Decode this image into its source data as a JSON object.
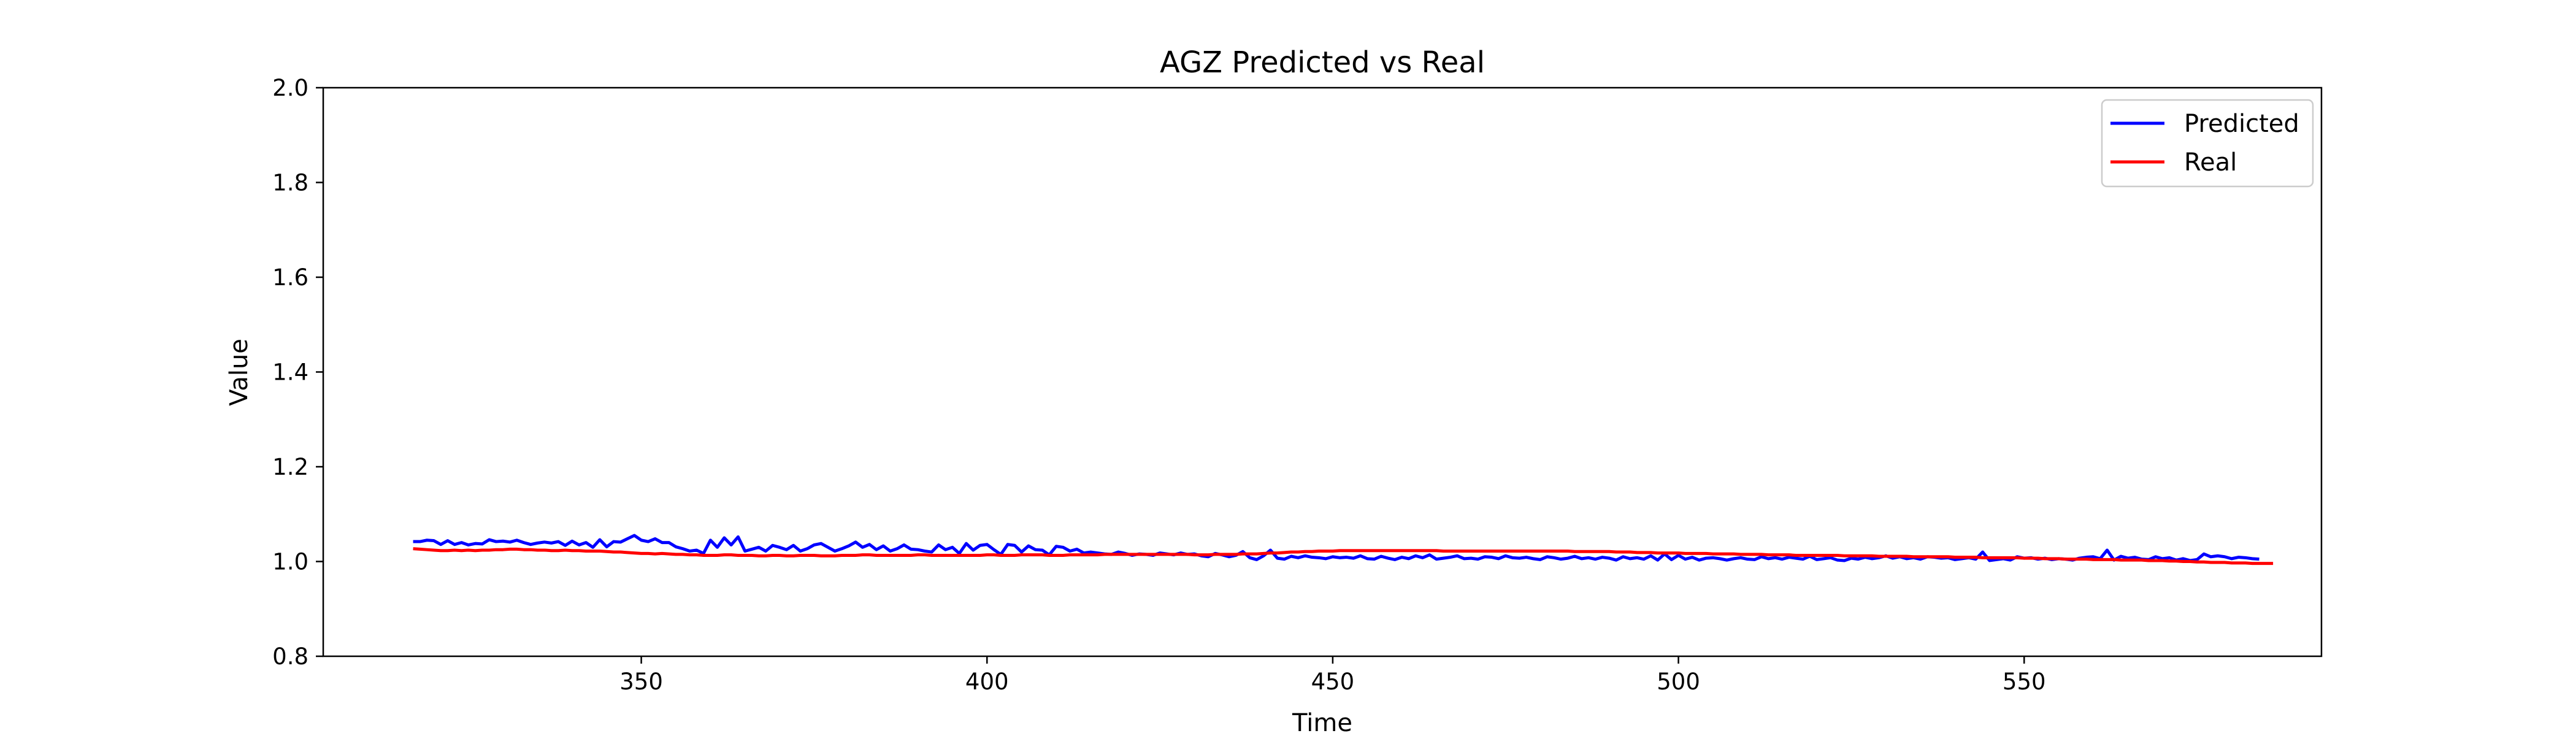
{
  "chart_data": {
    "type": "line",
    "title": "AGZ Predicted vs Real",
    "xlabel": "Time",
    "ylabel": "Value",
    "xlim": [
      304,
      593
    ],
    "ylim": [
      0.8,
      2.0
    ],
    "xticks": [
      350,
      400,
      450,
      500,
      550
    ],
    "yticks": [
      0.8,
      1.0,
      1.2,
      1.4,
      1.6,
      1.8,
      2.0
    ],
    "xtick_labels": [
      "350",
      "400",
      "450",
      "500",
      "550"
    ],
    "ytick_labels": [
      "0.8",
      "1.0",
      "1.2",
      "1.4",
      "1.6",
      "1.8",
      "2.0"
    ],
    "grid": false,
    "legend_position": "top-right",
    "x_start": 317,
    "x_step": 1,
    "series": [
      {
        "name": "Predicted",
        "color": "#0000ff",
        "values": [
          1.042,
          1.042,
          1.045,
          1.044,
          1.036,
          1.044,
          1.036,
          1.04,
          1.035,
          1.038,
          1.037,
          1.046,
          1.042,
          1.043,
          1.041,
          1.045,
          1.04,
          1.036,
          1.039,
          1.041,
          1.039,
          1.042,
          1.034,
          1.043,
          1.035,
          1.04,
          1.03,
          1.046,
          1.031,
          1.042,
          1.041,
          1.048,
          1.055,
          1.045,
          1.042,
          1.048,
          1.04,
          1.04,
          1.031,
          1.027,
          1.022,
          1.024,
          1.017,
          1.045,
          1.03,
          1.05,
          1.035,
          1.052,
          1.022,
          1.026,
          1.03,
          1.022,
          1.034,
          1.03,
          1.025,
          1.034,
          1.022,
          1.027,
          1.035,
          1.038,
          1.03,
          1.022,
          1.027,
          1.033,
          1.041,
          1.03,
          1.036,
          1.025,
          1.033,
          1.022,
          1.027,
          1.035,
          1.026,
          1.025,
          1.022,
          1.02,
          1.035,
          1.025,
          1.03,
          1.017,
          1.038,
          1.024,
          1.034,
          1.036,
          1.025,
          1.015,
          1.036,
          1.034,
          1.02,
          1.033,
          1.025,
          1.024,
          1.014,
          1.032,
          1.03,
          1.022,
          1.026,
          1.018,
          1.02,
          1.018,
          1.016,
          1.015,
          1.02,
          1.017,
          1.013,
          1.016,
          1.015,
          1.013,
          1.018,
          1.016,
          1.014,
          1.018,
          1.015,
          1.016,
          1.012,
          1.01,
          1.017,
          1.014,
          1.01,
          1.013,
          1.021,
          1.008,
          1.004,
          1.012,
          1.024,
          1.007,
          1.005,
          1.011,
          1.008,
          1.012,
          1.009,
          1.008,
          1.006,
          1.01,
          1.008,
          1.009,
          1.007,
          1.012,
          1.006,
          1.005,
          1.011,
          1.007,
          1.004,
          1.009,
          1.006,
          1.012,
          1.008,
          1.014,
          1.005,
          1.007,
          1.009,
          1.012,
          1.006,
          1.007,
          1.005,
          1.01,
          1.009,
          1.006,
          1.012,
          1.008,
          1.007,
          1.009,
          1.006,
          1.004,
          1.01,
          1.008,
          1.005,
          1.007,
          1.011,
          1.006,
          1.008,
          1.005,
          1.009,
          1.007,
          1.003,
          1.01,
          1.006,
          1.008,
          1.005,
          1.012,
          1.003,
          1.016,
          1.004,
          1.013,
          1.005,
          1.009,
          1.003,
          1.007,
          1.008,
          1.006,
          1.003,
          1.006,
          1.008,
          1.005,
          1.004,
          1.01,
          1.006,
          1.008,
          1.005,
          1.009,
          1.007,
          1.005,
          1.011,
          1.004,
          1.006,
          1.008,
          1.003,
          1.002,
          1.007,
          1.005,
          1.009,
          1.006,
          1.008,
          1.012,
          1.007,
          1.01,
          1.006,
          1.008,
          1.005,
          1.01,
          1.009,
          1.007,
          1.008,
          1.004,
          1.006,
          1.008,
          1.005,
          1.02,
          1.002,
          1.004,
          1.006,
          1.003,
          1.01,
          1.007,
          1.008,
          1.005,
          1.007,
          1.004,
          1.006,
          1.005,
          1.003,
          1.007,
          1.009,
          1.01,
          1.006,
          1.024,
          1.003,
          1.011,
          1.007,
          1.009,
          1.005,
          1.004,
          1.01,
          1.006,
          1.008,
          1.003,
          1.006,
          1.002,
          1.004,
          1.016,
          1.01,
          1.012,
          1.01,
          1.006,
          1.009,
          1.008,
          1.006,
          1.005
        ]
      },
      {
        "name": "Real",
        "color": "#ff0000",
        "values": [
          1.027,
          1.026,
          1.025,
          1.024,
          1.023,
          1.023,
          1.024,
          1.023,
          1.024,
          1.023,
          1.024,
          1.024,
          1.025,
          1.025,
          1.026,
          1.026,
          1.025,
          1.025,
          1.024,
          1.024,
          1.023,
          1.023,
          1.024,
          1.023,
          1.023,
          1.022,
          1.022,
          1.022,
          1.021,
          1.02,
          1.02,
          1.019,
          1.018,
          1.017,
          1.017,
          1.016,
          1.017,
          1.016,
          1.015,
          1.015,
          1.014,
          1.014,
          1.013,
          1.013,
          1.013,
          1.014,
          1.014,
          1.013,
          1.013,
          1.013,
          1.012,
          1.012,
          1.013,
          1.013,
          1.012,
          1.012,
          1.013,
          1.013,
          1.013,
          1.012,
          1.012,
          1.012,
          1.013,
          1.013,
          1.013,
          1.014,
          1.014,
          1.013,
          1.013,
          1.013,
          1.013,
          1.013,
          1.013,
          1.014,
          1.014,
          1.013,
          1.013,
          1.013,
          1.013,
          1.013,
          1.013,
          1.013,
          1.013,
          1.014,
          1.014,
          1.013,
          1.013,
          1.013,
          1.014,
          1.014,
          1.014,
          1.014,
          1.013,
          1.013,
          1.013,
          1.014,
          1.014,
          1.014,
          1.014,
          1.014,
          1.015,
          1.015,
          1.015,
          1.015,
          1.015,
          1.015,
          1.015,
          1.015,
          1.015,
          1.015,
          1.015,
          1.015,
          1.015,
          1.014,
          1.014,
          1.014,
          1.015,
          1.015,
          1.015,
          1.015,
          1.016,
          1.016,
          1.016,
          1.017,
          1.018,
          1.018,
          1.019,
          1.02,
          1.02,
          1.021,
          1.021,
          1.022,
          1.022,
          1.022,
          1.023,
          1.023,
          1.023,
          1.023,
          1.023,
          1.023,
          1.023,
          1.023,
          1.023,
          1.023,
          1.023,
          1.023,
          1.023,
          1.023,
          1.023,
          1.022,
          1.022,
          1.022,
          1.022,
          1.022,
          1.022,
          1.022,
          1.022,
          1.022,
          1.022,
          1.022,
          1.022,
          1.022,
          1.022,
          1.022,
          1.022,
          1.022,
          1.022,
          1.022,
          1.021,
          1.021,
          1.021,
          1.021,
          1.021,
          1.021,
          1.02,
          1.02,
          1.02,
          1.019,
          1.019,
          1.019,
          1.018,
          1.018,
          1.018,
          1.018,
          1.017,
          1.017,
          1.017,
          1.017,
          1.016,
          1.016,
          1.016,
          1.016,
          1.015,
          1.015,
          1.015,
          1.015,
          1.014,
          1.014,
          1.014,
          1.014,
          1.013,
          1.013,
          1.013,
          1.013,
          1.013,
          1.013,
          1.013,
          1.012,
          1.012,
          1.012,
          1.012,
          1.012,
          1.011,
          1.011,
          1.011,
          1.011,
          1.011,
          1.01,
          1.01,
          1.01,
          1.01,
          1.01,
          1.01,
          1.009,
          1.009,
          1.009,
          1.009,
          1.008,
          1.008,
          1.008,
          1.008,
          1.008,
          1.008,
          1.007,
          1.007,
          1.007,
          1.006,
          1.006,
          1.006,
          1.005,
          1.005,
          1.005,
          1.005,
          1.004,
          1.004,
          1.004,
          1.004,
          1.003,
          1.003,
          1.003,
          1.003,
          1.002,
          1.002,
          1.002,
          1.001,
          1.001,
          1.0,
          1.0,
          0.999,
          0.999,
          0.998,
          0.998,
          0.998,
          0.997,
          0.997,
          0.997,
          0.996,
          0.996,
          0.996,
          0.996
        ]
      }
    ]
  }
}
